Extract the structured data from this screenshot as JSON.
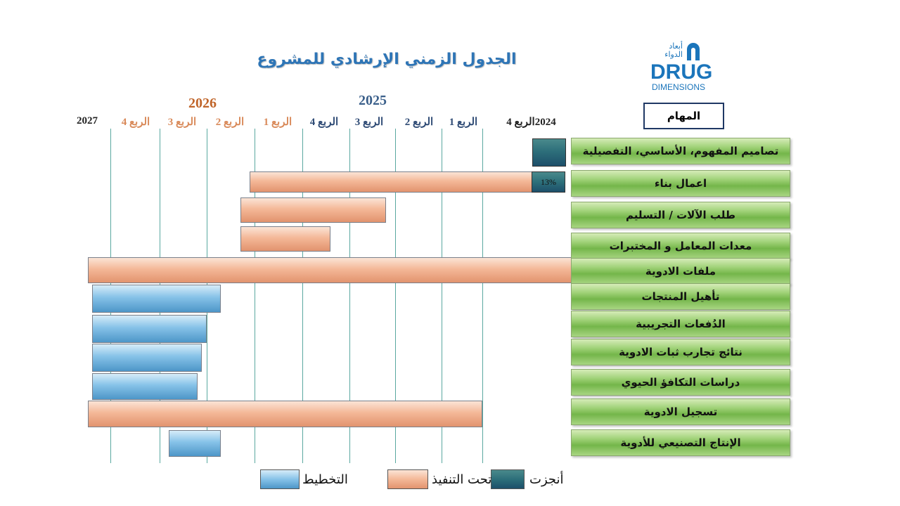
{
  "chart_data": {
    "type": "gantt",
    "title": "الجدول الزمني الإرشادي للمشروع",
    "years": {
      "y2025": "2025",
      "y2026": "2026"
    },
    "timeline_labels": [
      "2024الربع 4",
      "الربع 1",
      "الربع 2",
      "الربع  3",
      "الربع 4",
      "الربع 1",
      "الربع 2",
      "الربع  3",
      "الربع 4",
      "2027"
    ],
    "tasks_header": "المهام",
    "tasks": [
      {
        "name": "تصاميم المفهوم، الأساسي، التفصيلية",
        "status": "done",
        "start": 0.0,
        "end": 0.4,
        "note": ""
      },
      {
        "name": "اعمال بناء",
        "status": "in-progress",
        "start": 0.1,
        "end": 6.1,
        "note": "13%"
      },
      {
        "name": "طلب الآلات / التسليم",
        "status": "in-progress",
        "start": 3.2,
        "end": 6.3,
        "note": ""
      },
      {
        "name": "معدات المعامل و المختبرات",
        "status": "in-progress",
        "start": 4.4,
        "end": 6.3,
        "note": ""
      },
      {
        "name": "ملفات الادوية",
        "status": "in-progress",
        "start": -0.1,
        "end": 9.6,
        "note": ""
      },
      {
        "name": "تأهيل المنتجات",
        "status": "planning",
        "start": 6.7,
        "end": 9.5,
        "note": ""
      },
      {
        "name": "الدُفعات التجريبية",
        "status": "planning",
        "start": 7.0,
        "end": 9.5,
        "note": ""
      },
      {
        "name": "نتائج تجارب ثبات الادوية",
        "status": "planning",
        "start": 7.1,
        "end": 9.5,
        "note": ""
      },
      {
        "name": "دراسات التكافؤ الحيوي",
        "status": "planning",
        "start": 7.2,
        "end": 9.5,
        "note": ""
      },
      {
        "name": "تسجيل الادوية",
        "status": "in-progress",
        "start": 1.0,
        "end": 9.6,
        "note": ""
      },
      {
        "name": "الإنتاج التصنيعي للأدوية",
        "status": "planning",
        "start": 6.7,
        "end": 7.8,
        "note": ""
      }
    ],
    "legend": [
      {
        "key": "done",
        "label": "أنجزت"
      },
      {
        "key": "in-progress",
        "label": "تحت التنفيذ"
      },
      {
        "key": "planning",
        "label": "التخطيط"
      }
    ],
    "colors": {
      "done": "#2d6f7a",
      "in-progress": "#f4b898",
      "planning": "#86c2e8",
      "task-button": "#74b64a",
      "title": "#2e75b6"
    }
  },
  "logo": {
    "arabic_line1": "أبعاد",
    "arabic_line2": "الدواء",
    "brand": "DRUG",
    "sub": "DIMENSIONS"
  }
}
